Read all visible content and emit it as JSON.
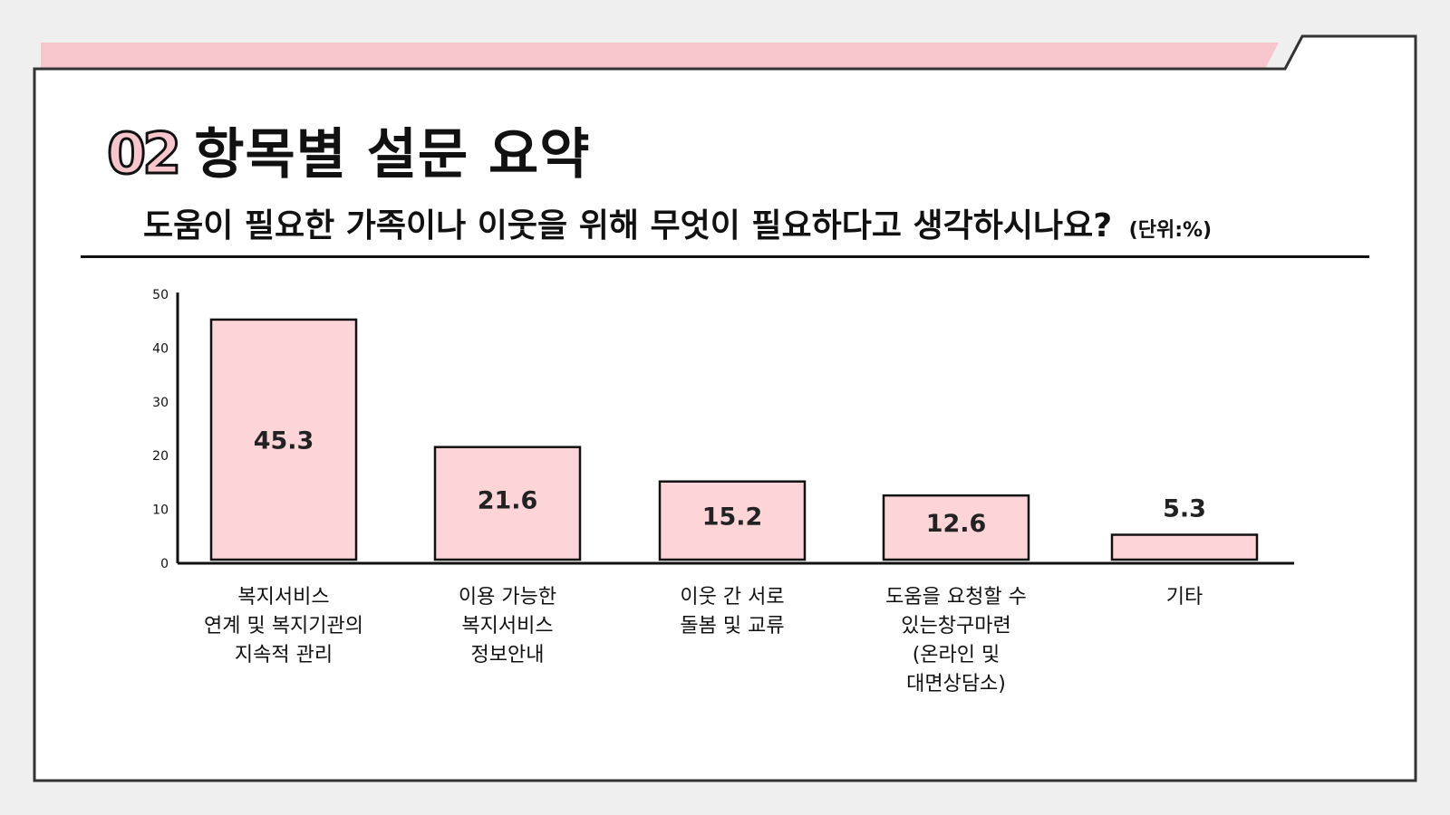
{
  "header": {
    "section_number": "02",
    "section_title": "항목별 설문 요약"
  },
  "question": {
    "text": "도움이 필요한 가족이나 이웃을 위해 무엇이 필요하다고 생각하시나요?",
    "unit": "(단위:%)"
  },
  "colors": {
    "accent": "#f7c6cc",
    "bar_fill": "#fdd5d9",
    "outline": "#111111",
    "background": "#efefef",
    "panel": "#ffffff"
  },
  "chart_data": {
    "type": "bar",
    "title": "",
    "xlabel": "",
    "ylabel": "",
    "ylim": [
      0,
      50
    ],
    "yticks": [
      0,
      10,
      20,
      30,
      40,
      50
    ],
    "categories": [
      "복지서비스\n연계 및 복지기관의\n지속적 관리",
      "이용 가능한\n복지서비스\n정보안내",
      "이웃 간 서로\n돌봄 및 교류",
      "도움을 요청할 수\n있는창구마련\n(온라인 및\n대면상담소)",
      "기타"
    ],
    "values": [
      45.3,
      21.6,
      15.2,
      12.6,
      5.3
    ],
    "value_labels": [
      "45.3",
      "21.6",
      "15.2",
      "12.6",
      "5.3"
    ],
    "grid": false,
    "legend": "none"
  }
}
